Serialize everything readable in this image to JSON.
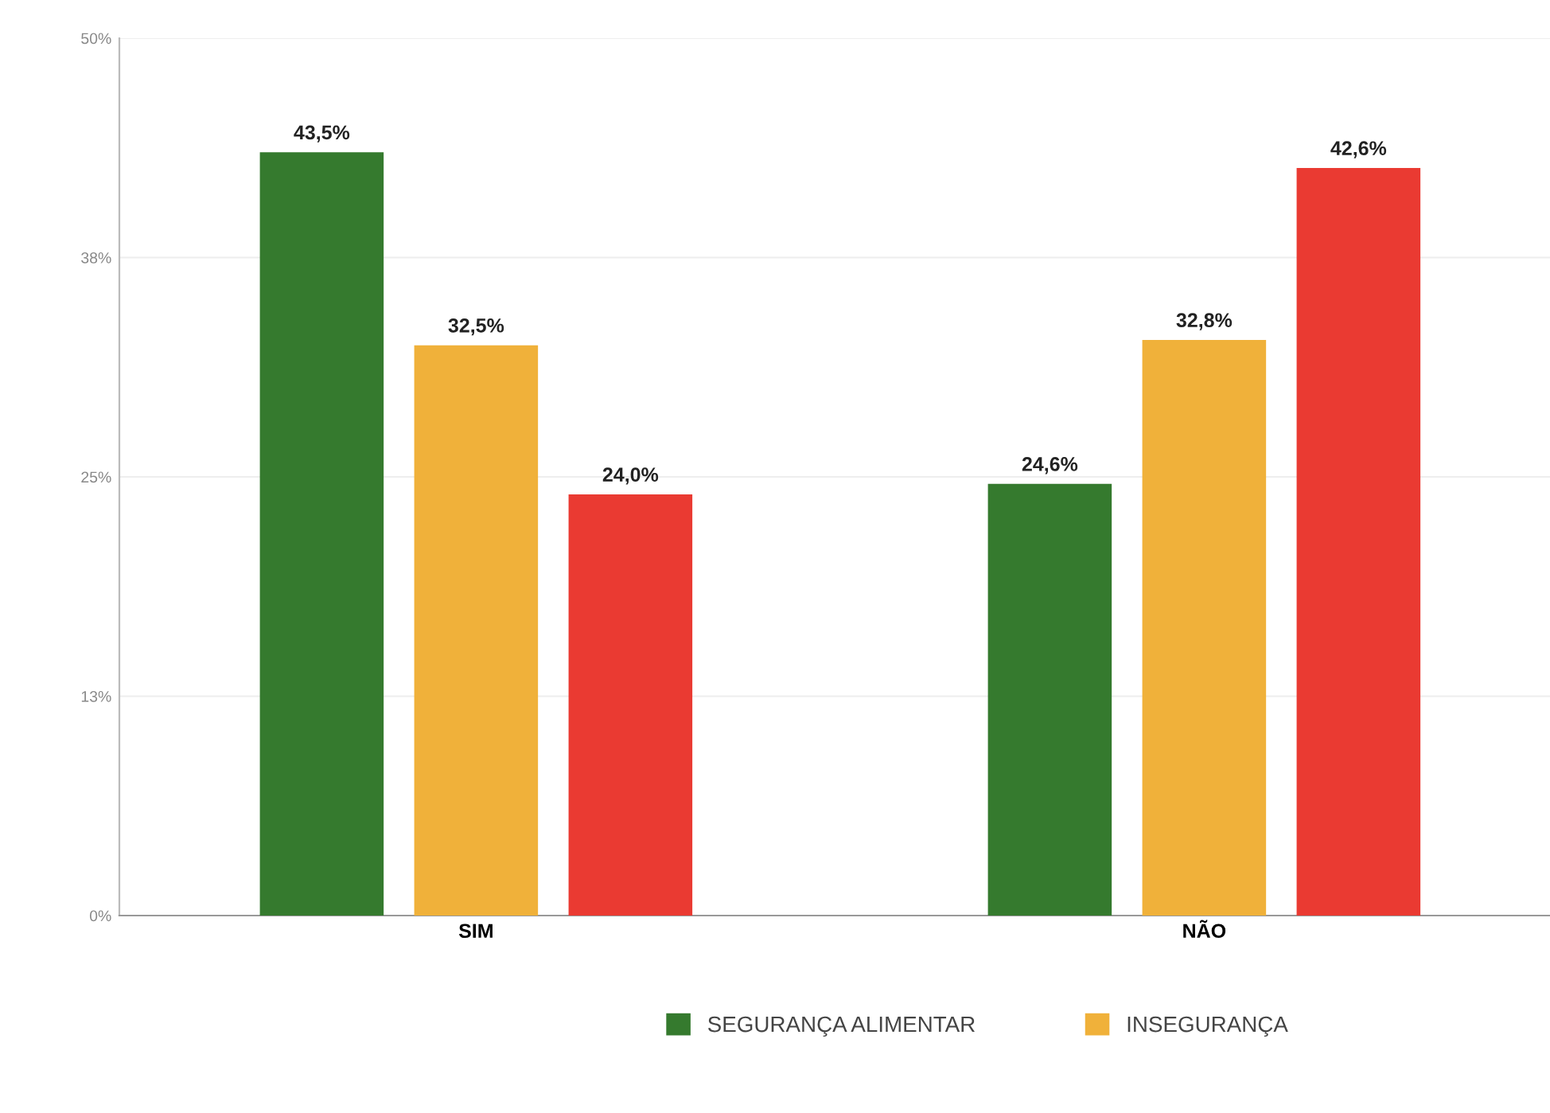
{
  "chart_data": {
    "type": "bar",
    "categories": [
      "SIM",
      "NÃO"
    ],
    "series": [
      {
        "name": "SEGURANÇA ALIMENTAR",
        "color": "#357a2e",
        "values": [
          43.5,
          24.6
        ],
        "value_labels": [
          "43,5%",
          "24,6%"
        ]
      },
      {
        "name": "INSEGURANÇA",
        "color": "#f0b13a",
        "values": [
          32.5,
          32.8
        ],
        "value_labels": [
          "32,5%",
          "32,8%"
        ]
      },
      {
        "color": "#ea3a32",
        "values": [
          24.0,
          42.6
        ],
        "value_labels": [
          "24,0%",
          "42,6%"
        ]
      }
    ],
    "ylim": [
      0,
      50
    ],
    "yticks": [
      {
        "value": 0,
        "label": "0%"
      },
      {
        "value": 12.5,
        "label": "13%"
      },
      {
        "value": 25,
        "label": "25%"
      },
      {
        "value": 37.5,
        "label": "38%"
      },
      {
        "value": 50,
        "label": "50%"
      }
    ],
    "grid": "y",
    "legend": "bottom"
  }
}
